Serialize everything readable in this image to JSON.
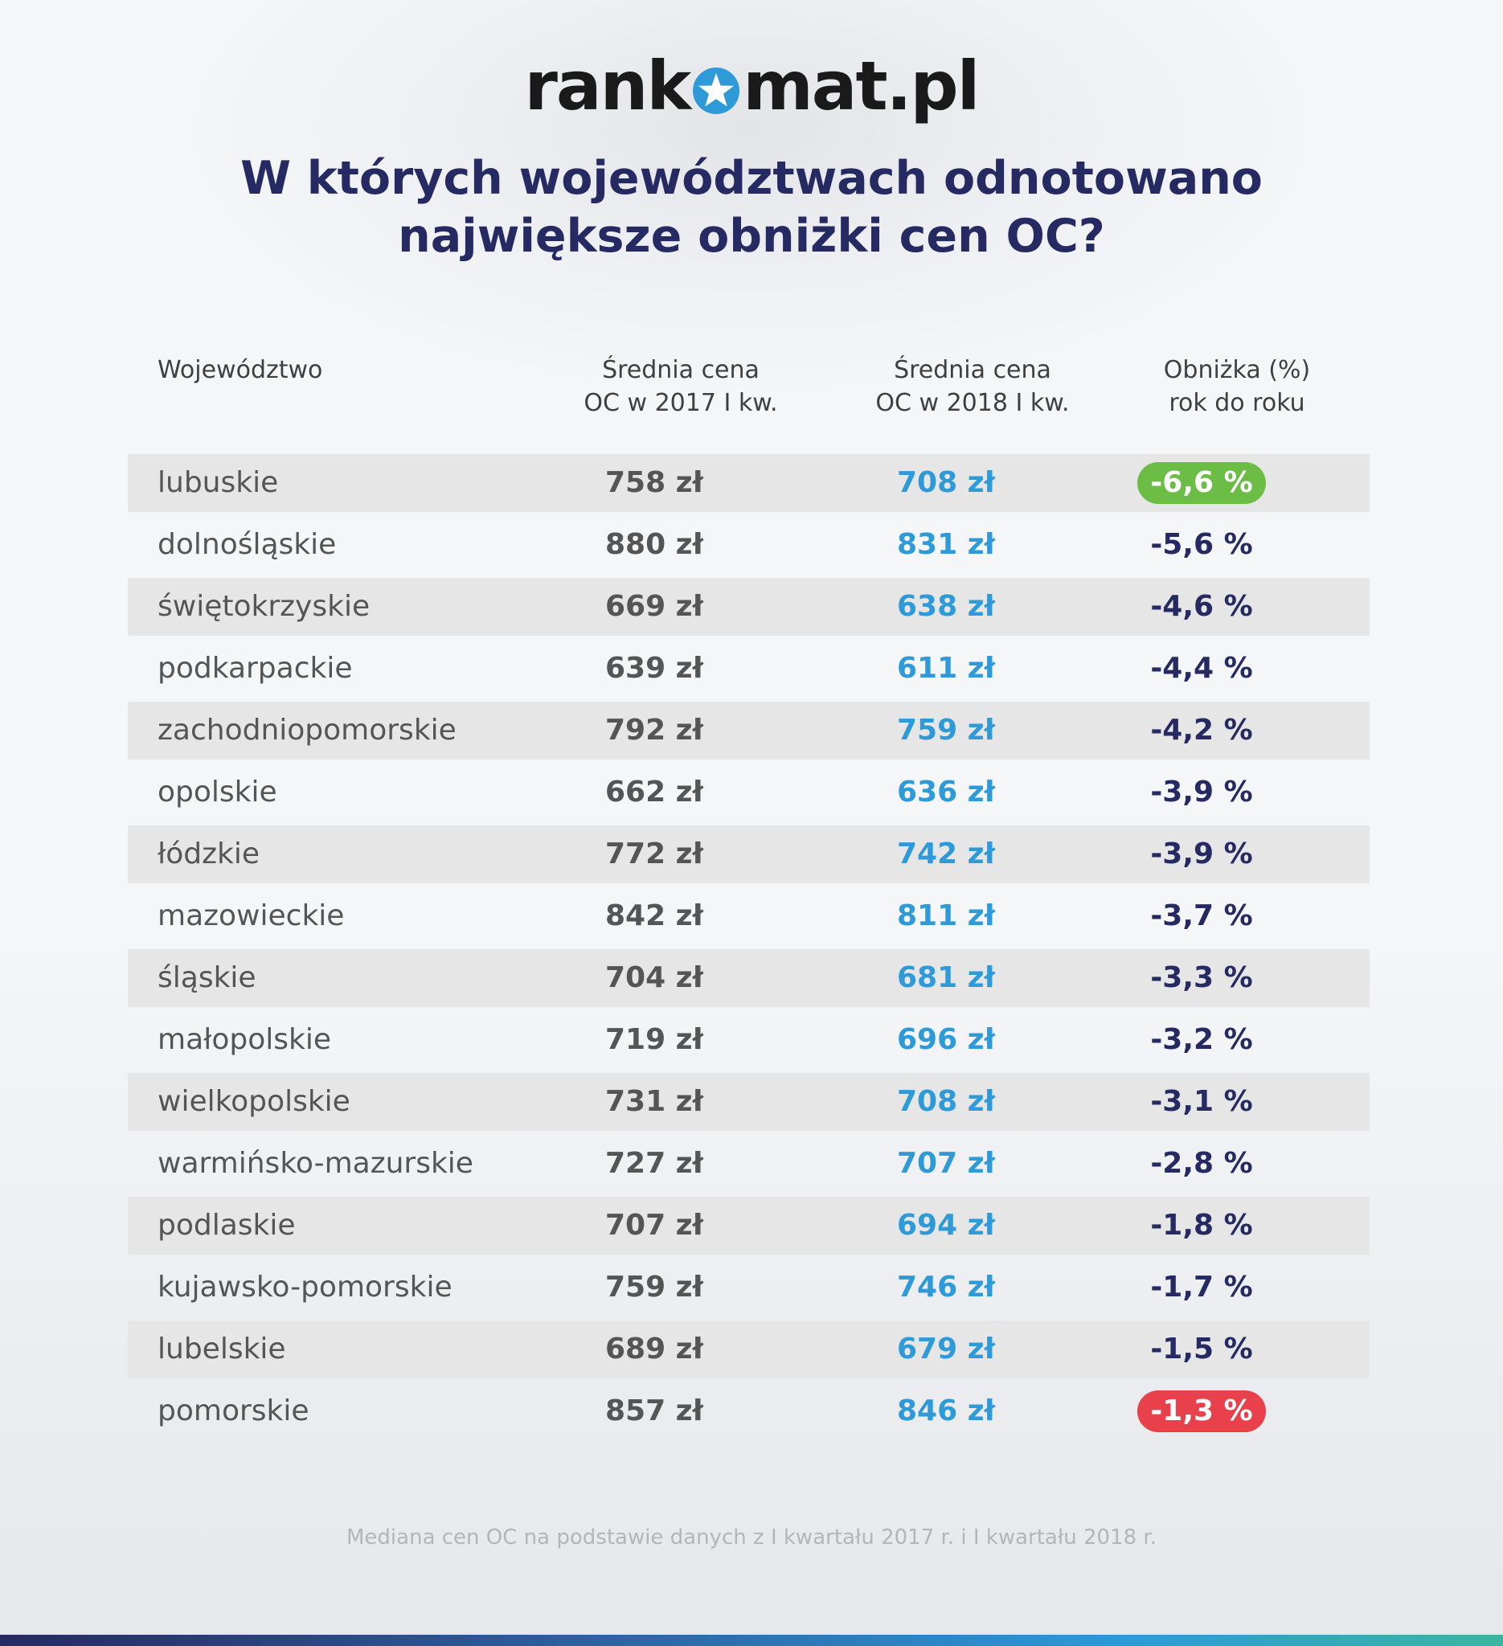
{
  "logo": {
    "part1": "rank",
    "part2": "mat.pl"
  },
  "title": {
    "line1": "W których województwach odnotowano",
    "line2": "największe obniżki cen OC?"
  },
  "headers": {
    "region": "Województwo",
    "price2017_l1": "Średnia cena",
    "price2017_l2": "OC w 2017 I kw.",
    "price2018_l1": "Średnia cena",
    "price2018_l2": "OC w 2018 I kw.",
    "change_l1": "Obniżka (%)",
    "change_l2": "rok do roku"
  },
  "chart_data": {
    "type": "table",
    "title": "W których województwach odnotowano największe obniżki cen OC?",
    "columns": [
      "Województwo",
      "Średnia cena OC w 2017 I kw.",
      "Średnia cena OC w 2018 I kw.",
      "Obniżka (%) rok do roku"
    ],
    "rows": [
      {
        "region": "lubuskie",
        "price2017": "758 zł",
        "price2018": "708 zł",
        "change": "-6,6 %",
        "highlight": "best"
      },
      {
        "region": "dolnośląskie",
        "price2017": "880 zł",
        "price2018": "831 zł",
        "change": "-5,6 %",
        "highlight": ""
      },
      {
        "region": "świętokrzyskie",
        "price2017": "669 zł",
        "price2018": "638 zł",
        "change": "-4,6 %",
        "highlight": ""
      },
      {
        "region": "podkarpackie",
        "price2017": "639 zł",
        "price2018": "611 zł",
        "change": "-4,4 %",
        "highlight": ""
      },
      {
        "region": "zachodniopomorskie",
        "price2017": "792 zł",
        "price2018": "759 zł",
        "change": "-4,2 %",
        "highlight": ""
      },
      {
        "region": "opolskie",
        "price2017": "662 zł",
        "price2018": "636 zł",
        "change": "-3,9 %",
        "highlight": ""
      },
      {
        "region": "łódzkie",
        "price2017": "772 zł",
        "price2018": "742 zł",
        "change": "-3,9 %",
        "highlight": ""
      },
      {
        "region": "mazowieckie",
        "price2017": "842 zł",
        "price2018": "811 zł",
        "change": "-3,7 %",
        "highlight": ""
      },
      {
        "region": "śląskie",
        "price2017": "704 zł",
        "price2018": "681 zł",
        "change": "-3,3 %",
        "highlight": ""
      },
      {
        "region": "małopolskie",
        "price2017": "719 zł",
        "price2018": "696 zł",
        "change": "-3,2 %",
        "highlight": ""
      },
      {
        "region": "wielkopolskie",
        "price2017": "731 zł",
        "price2018": "708 zł",
        "change": "-3,1 %",
        "highlight": ""
      },
      {
        "region": "warmińsko-mazurskie",
        "price2017": "727 zł",
        "price2018": "707 zł",
        "change": "-2,8 %",
        "highlight": ""
      },
      {
        "region": "podlaskie",
        "price2017": "707 zł",
        "price2018": "694 zł",
        "change": "-1,8 %",
        "highlight": ""
      },
      {
        "region": "kujawsko-pomorskie",
        "price2017": "759 zł",
        "price2018": "746 zł",
        "change": "-1,7 %",
        "highlight": ""
      },
      {
        "region": "lubelskie",
        "price2017": "689 zł",
        "price2018": "679 zł",
        "change": "-1,5 %",
        "highlight": ""
      },
      {
        "region": "pomorskie",
        "price2017": "857 zł",
        "price2018": "846 zł",
        "change": "-1,3 %",
        "highlight": "worst"
      }
    ]
  },
  "footnote": "Mediana cen OC na podstawie danych z I kwartału 2017 r. i I kwartału 2018 r.",
  "colors": {
    "title": "#262a62",
    "price2018": "#2e9ad8",
    "best": "#6cbd45",
    "worst": "#e8414b"
  }
}
